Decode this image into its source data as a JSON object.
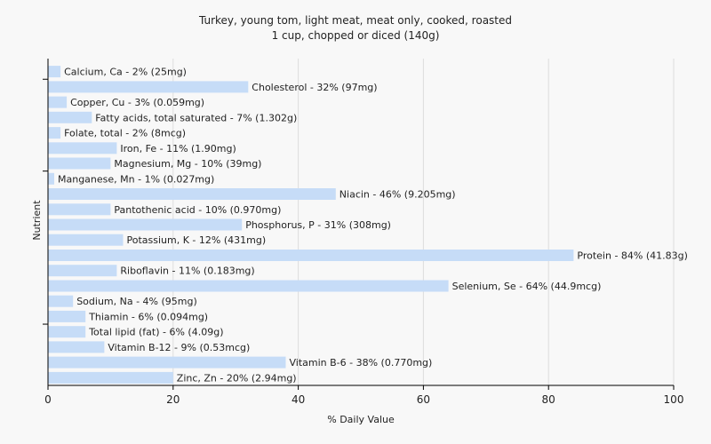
{
  "chart_data": {
    "type": "bar",
    "orientation": "horizontal",
    "title": "Turkey, young tom, light meat, meat only, cooked, roasted",
    "subtitle": "1 cup, chopped or diced (140g)",
    "xlabel": "% Daily Value",
    "ylabel": "Nutrient",
    "xlim": [
      0,
      100
    ],
    "xticks": [
      0,
      20,
      40,
      60,
      80,
      100
    ],
    "grid": true,
    "bar_color": "#c6dcf7",
    "categories": [
      "Calcium, Ca",
      "Cholesterol",
      "Copper, Cu",
      "Fatty acids, total saturated",
      "Folate, total",
      "Iron, Fe",
      "Magnesium, Mg",
      "Manganese, Mn",
      "Niacin",
      "Pantothenic acid",
      "Phosphorus, P",
      "Potassium, K",
      "Protein",
      "Riboflavin",
      "Selenium, Se",
      "Sodium, Na",
      "Thiamin",
      "Total lipid (fat)",
      "Vitamin B-12",
      "Vitamin B-6",
      "Zinc, Zn"
    ],
    "values": [
      2,
      32,
      3,
      7,
      2,
      11,
      10,
      1,
      46,
      10,
      31,
      12,
      84,
      11,
      64,
      4,
      6,
      6,
      9,
      38,
      20
    ],
    "labels": [
      "Calcium, Ca - 2% (25mg)",
      "Cholesterol - 32% (97mg)",
      "Copper, Cu - 3% (0.059mg)",
      "Fatty acids, total saturated - 7% (1.302g)",
      "Folate, total - 2% (8mcg)",
      "Iron, Fe - 11% (1.90mg)",
      "Magnesium, Mg - 10% (39mg)",
      "Manganese, Mn - 1% (0.027mg)",
      "Niacin - 46% (9.205mg)",
      "Pantothenic acid - 10% (0.970mg)",
      "Phosphorus, P - 31% (308mg)",
      "Potassium, K - 12% (431mg)",
      "Protein - 84% (41.83g)",
      "Riboflavin - 11% (0.183mg)",
      "Selenium, Se - 64% (44.9mcg)",
      "Sodium, Na - 4% (95mg)",
      "Thiamin - 6% (0.094mg)",
      "Total lipid (fat) - 6% (4.09g)",
      "Vitamin B-12 - 9% (0.53mcg)",
      "Vitamin B-6 - 38% (0.770mg)",
      "Zinc, Zn - 20% (2.94mg)"
    ]
  }
}
